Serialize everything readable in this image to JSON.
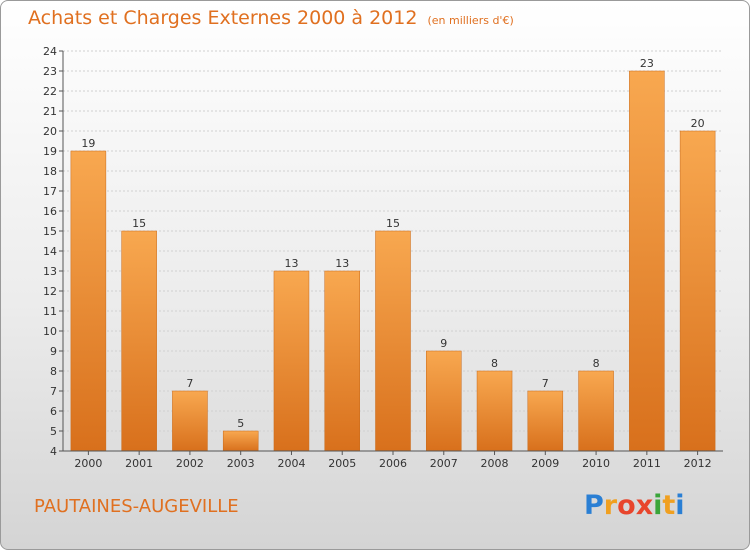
{
  "header": {
    "title": "Achats et Charges Externes 2000 à 2012",
    "unit": "(en milliers d'€)"
  },
  "footer": {
    "commune": "PAUTAINES-AUGEVILLE",
    "logo_letters": [
      "P",
      "r",
      "o",
      "x",
      "i",
      "t",
      "i"
    ],
    "logo_colors": [
      "#2a7fd4",
      "#f0a020",
      "#e8452c",
      "#e8452c",
      "#3aa53a",
      "#f0a020",
      "#2a7fd4"
    ]
  },
  "colors": {
    "bar_light": "#f8a850",
    "bar_dark": "#d8701c",
    "text_accent": "#e07020"
  },
  "chart_data": {
    "type": "bar",
    "categories": [
      "2000",
      "2001",
      "2002",
      "2003",
      "2004",
      "2005",
      "2006",
      "2007",
      "2008",
      "2009",
      "2010",
      "2011",
      "2012"
    ],
    "values": [
      19,
      15,
      7,
      5,
      13,
      13,
      15,
      9,
      8,
      7,
      8,
      23,
      20
    ],
    "ylim": [
      4,
      24
    ],
    "yticks": [
      "4",
      "5",
      "6",
      "7",
      "8",
      "9",
      "10",
      "11",
      "12",
      "13",
      "14",
      "15",
      "16",
      "17",
      "18",
      "19",
      "20",
      "21",
      "22",
      "23",
      "24"
    ],
    "grid": true,
    "data_labels": true,
    "title": "Achats et Charges Externes 2000 à 2012",
    "xlabel": "",
    "ylabel": ""
  }
}
